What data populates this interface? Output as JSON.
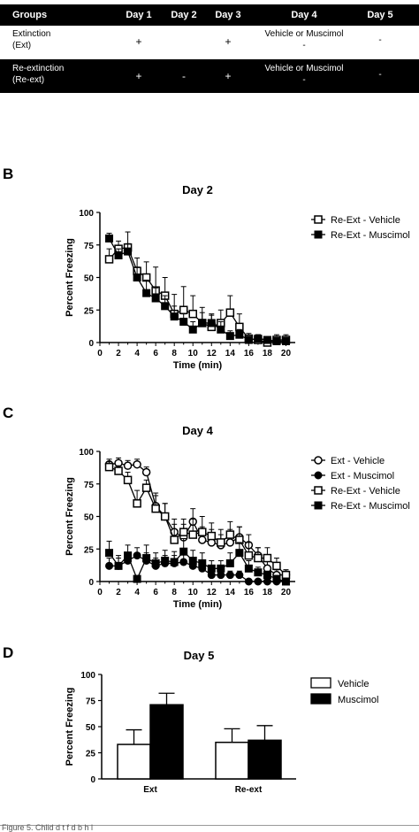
{
  "table": {
    "headers": [
      "Groups",
      "Day 1",
      "Day 2",
      "Day 3",
      "Day 4",
      "Day 5"
    ],
    "rows": [
      {
        "group_line1": "Extinction",
        "group_line2": "(Ext)",
        "day1": "+",
        "day2": "",
        "day3": "+",
        "day4_line1": "Vehicle or Muscimol",
        "day4_line2": "-",
        "day5": "-"
      },
      {
        "group_line1": "Re-extinction",
        "group_line2": "(Re-ext)",
        "day1": "+",
        "day2": "-",
        "day3": "+",
        "day4_line1": "Vehicle or Muscimol",
        "day4_line2": "-",
        "day5": "-"
      }
    ]
  },
  "panels": {
    "b": "B",
    "c": "C",
    "d": "D"
  },
  "caption": "Figure 5. Chlid d t f    d b    h     l    ",
  "chart_data": [
    {
      "type": "line",
      "title": "Day 2",
      "xlabel": "Time (min)",
      "ylabel": "Percent Freezing",
      "xlim": [
        0,
        21
      ],
      "ylim": [
        0,
        100
      ],
      "xticks": [
        0,
        2,
        4,
        6,
        8,
        10,
        12,
        14,
        16,
        18,
        20
      ],
      "yticks": [
        0,
        25,
        50,
        75,
        100
      ],
      "legend": "top-right",
      "series": [
        {
          "name": "Re-Ext - Vehicle",
          "marker": "open-square",
          "x": [
            1,
            2,
            3,
            4,
            5,
            6,
            7,
            8,
            9,
            10,
            11,
            12,
            13,
            14,
            15,
            16,
            17,
            18,
            19,
            20
          ],
          "y": [
            64,
            72,
            73,
            55,
            50,
            40,
            36,
            22,
            25,
            22,
            15,
            12,
            15,
            23,
            12,
            3,
            2,
            0,
            2,
            2
          ],
          "err": [
            8,
            6,
            12,
            10,
            12,
            18,
            14,
            15,
            18,
            14,
            12,
            10,
            10,
            13,
            10,
            4,
            4,
            2,
            4,
            4
          ]
        },
        {
          "name": "Re-Ext - Muscimol",
          "marker": "filled-square",
          "x": [
            1,
            2,
            3,
            4,
            5,
            6,
            7,
            8,
            9,
            10,
            11,
            12,
            13,
            14,
            15,
            16,
            17,
            18,
            19,
            20
          ],
          "y": [
            80,
            67,
            70,
            50,
            38,
            34,
            28,
            20,
            16,
            10,
            15,
            15,
            10,
            5,
            6,
            2,
            3,
            2,
            1,
            1
          ],
          "err": [
            4,
            5,
            6,
            8,
            10,
            8,
            8,
            8,
            6,
            6,
            8,
            6,
            6,
            4,
            4,
            2,
            3,
            2,
            2,
            2
          ]
        }
      ]
    },
    {
      "type": "line",
      "title": "Day 4",
      "xlabel": "Time (min)",
      "ylabel": "Percent Freezing",
      "xlim": [
        0,
        21
      ],
      "ylim": [
        0,
        100
      ],
      "xticks": [
        0,
        2,
        4,
        6,
        8,
        10,
        12,
        14,
        16,
        18,
        20
      ],
      "yticks": [
        0,
        25,
        50,
        75,
        100
      ],
      "legend": "top-right",
      "series": [
        {
          "name": "Ext - Vehicle",
          "marker": "open-circle",
          "x": [
            1,
            2,
            3,
            4,
            5,
            6,
            7,
            8,
            9,
            10,
            11,
            12,
            13,
            14,
            15,
            16,
            17,
            18,
            19,
            20
          ],
          "y": [
            90,
            91,
            89,
            90,
            84,
            58,
            50,
            38,
            34,
            46,
            32,
            30,
            28,
            30,
            34,
            28,
            20,
            10,
            5,
            5
          ],
          "err": [
            4,
            4,
            4,
            4,
            4,
            10,
            10,
            10,
            10,
            10,
            10,
            10,
            8,
            10,
            8,
            8,
            6,
            6,
            4,
            4
          ]
        },
        {
          "name": "Ext - Muscimol",
          "marker": "filled-circle",
          "x": [
            1,
            2,
            3,
            4,
            5,
            6,
            7,
            8,
            9,
            10,
            11,
            12,
            13,
            14,
            15,
            16,
            17,
            18,
            19,
            20
          ],
          "y": [
            12,
            12,
            16,
            20,
            16,
            12,
            14,
            14,
            15,
            12,
            10,
            5,
            5,
            5,
            5,
            0,
            0,
            0,
            0,
            0
          ],
          "err": [
            6,
            6,
            6,
            6,
            6,
            6,
            6,
            6,
            6,
            6,
            6,
            3,
            3,
            3,
            3,
            1,
            1,
            1,
            1,
            1
          ]
        },
        {
          "name": "Re-Ext - Vehicle",
          "marker": "open-square",
          "x": [
            1,
            2,
            3,
            4,
            5,
            6,
            7,
            8,
            9,
            10,
            11,
            12,
            13,
            14,
            15,
            16,
            17,
            18,
            19,
            20
          ],
          "y": [
            88,
            85,
            78,
            60,
            72,
            56,
            50,
            32,
            38,
            36,
            38,
            35,
            30,
            36,
            32,
            20,
            18,
            18,
            12,
            5
          ],
          "err": [
            4,
            4,
            6,
            10,
            6,
            10,
            10,
            12,
            10,
            12,
            12,
            10,
            10,
            10,
            10,
            10,
            8,
            8,
            6,
            4
          ]
        },
        {
          "name": "Re-Ext - Muscimol",
          "marker": "filled-square",
          "x": [
            1,
            2,
            3,
            4,
            5,
            6,
            7,
            8,
            9,
            10,
            11,
            12,
            13,
            14,
            15,
            16,
            17,
            18,
            19,
            20
          ],
          "y": [
            22,
            12,
            20,
            2,
            18,
            14,
            16,
            15,
            23,
            16,
            14,
            10,
            10,
            14,
            22,
            10,
            7,
            5,
            2,
            0
          ],
          "err": [
            9,
            8,
            8,
            2,
            10,
            8,
            8,
            8,
            10,
            8,
            8,
            6,
            6,
            8,
            8,
            6,
            4,
            3,
            2,
            1
          ]
        }
      ]
    },
    {
      "type": "bar",
      "title": "Day 5",
      "ylabel": "Percent Freezing",
      "categories": [
        "Ext",
        "Re-ext"
      ],
      "ylim": [
        0,
        100
      ],
      "yticks": [
        0,
        25,
        50,
        75,
        100
      ],
      "legend": "top-right",
      "series": [
        {
          "name": "Vehicle",
          "fill": "#ffffff",
          "values": [
            33,
            35
          ],
          "err": [
            14,
            13
          ]
        },
        {
          "name": "Muscimol",
          "fill": "#000000",
          "values": [
            71,
            37
          ],
          "err": [
            11,
            14
          ]
        }
      ]
    }
  ]
}
